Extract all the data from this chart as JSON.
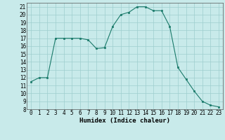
{
  "x": [
    0,
    1,
    2,
    3,
    4,
    5,
    6,
    7,
    8,
    9,
    10,
    11,
    12,
    13,
    14,
    15,
    16,
    17,
    18,
    19,
    20,
    21,
    22,
    23
  ],
  "y": [
    11.5,
    12.0,
    12.0,
    17.0,
    17.0,
    17.0,
    17.0,
    16.8,
    15.7,
    15.8,
    18.5,
    20.0,
    20.3,
    21.0,
    21.0,
    20.5,
    20.5,
    18.5,
    13.3,
    11.8,
    10.3,
    9.0,
    8.5,
    8.3
  ],
  "line_color": "#1a7a6a",
  "marker": "s",
  "marker_size": 2.0,
  "bg_color": "#c8eaea",
  "grid_color": "#9ecece",
  "xlabel": "Humidex (Indice chaleur)",
  "xlim": [
    -0.5,
    23.5
  ],
  "ylim": [
    8,
    21.5
  ],
  "yticks": [
    8,
    9,
    10,
    11,
    12,
    13,
    14,
    15,
    16,
    17,
    18,
    19,
    20,
    21
  ],
  "xticks": [
    0,
    1,
    2,
    3,
    4,
    5,
    6,
    7,
    8,
    9,
    10,
    11,
    12,
    13,
    14,
    15,
    16,
    17,
    18,
    19,
    20,
    21,
    22,
    23
  ],
  "label_fontsize": 6.5,
  "tick_fontsize": 5.5
}
